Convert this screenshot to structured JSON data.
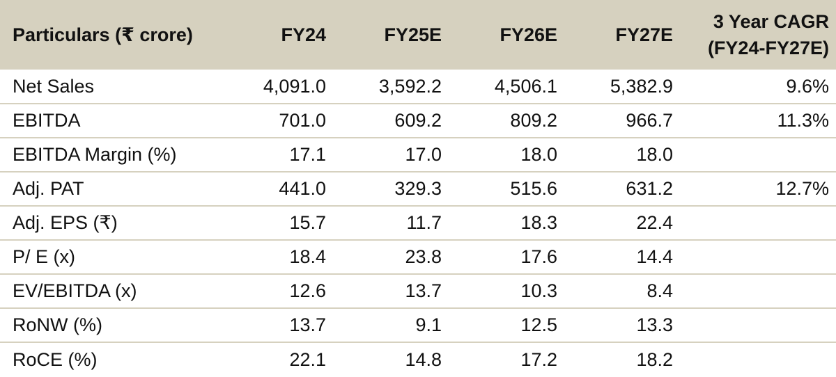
{
  "table": {
    "headers": [
      "Particulars (₹ crore)",
      "FY24",
      "FY25E",
      "FY26E",
      "FY27E",
      "3 Year CAGR",
      "(FY24-FY27E)"
    ],
    "rows": [
      [
        "Net Sales",
        "4,091.0",
        "3,592.2",
        "4,506.1",
        "5,382.9",
        "9.6%"
      ],
      [
        "EBITDA",
        "701.0",
        "609.2",
        "809.2",
        "966.7",
        "11.3%"
      ],
      [
        "EBITDA Margin (%)",
        "17.1",
        "17.0",
        "18.0",
        "18.0",
        ""
      ],
      [
        "Adj. PAT",
        "441.0",
        "329.3",
        "515.6",
        "631.2",
        "12.7%"
      ],
      [
        "Adj. EPS (₹)",
        "15.7",
        "11.7",
        "18.3",
        "22.4",
        ""
      ],
      [
        "P/ E (x)",
        "18.4",
        "23.8",
        "17.6",
        "14.4",
        ""
      ],
      [
        "EV/EBITDA (x)",
        "12.6",
        "13.7",
        "10.3",
        "8.4",
        ""
      ],
      [
        "RoNW (%)",
        "13.7",
        "9.1",
        "12.5",
        "13.3",
        ""
      ],
      [
        "RoCE (%)",
        "22.1",
        "14.8",
        "17.2",
        "18.2",
        ""
      ]
    ]
  },
  "colors": {
    "header_bg": "#d6d1bf",
    "row_divider": "#d6d1bf",
    "text": "#111111"
  }
}
